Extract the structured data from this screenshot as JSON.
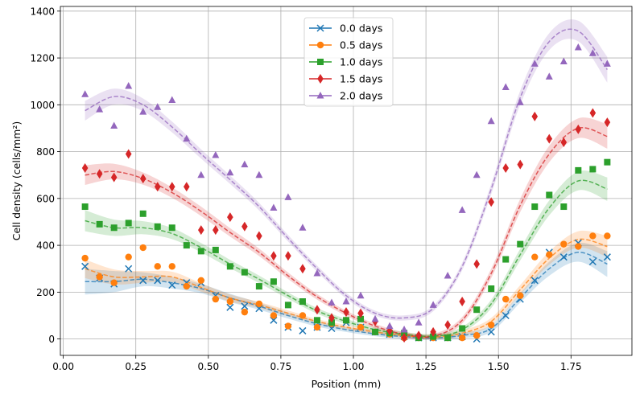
{
  "chart_data": {
    "type": "scatter",
    "title": "",
    "xlabel": "Position (mm)",
    "ylabel": "Cell density (cells/mm²)",
    "xlim": [
      -0.01,
      1.96
    ],
    "ylim": [
      -70,
      1420
    ],
    "xticks": [
      0.0,
      0.25,
      0.5,
      0.75,
      1.0,
      1.25,
      1.5,
      1.75
    ],
    "xtick_labels": [
      "0.00",
      "0.25",
      "0.50",
      "0.75",
      "1.00",
      "1.25",
      "1.50",
      "1.75"
    ],
    "yticks": [
      0,
      200,
      400,
      600,
      800,
      1000,
      1200,
      1400
    ],
    "ytick_labels": [
      "0",
      "200",
      "400",
      "600",
      "800",
      "1000",
      "1200",
      "1400"
    ],
    "grid": true,
    "legend_position": "upper-center",
    "x": [
      0.075,
      0.125,
      0.175,
      0.225,
      0.275,
      0.325,
      0.375,
      0.425,
      0.475,
      0.525,
      0.575,
      0.625,
      0.675,
      0.725,
      0.775,
      0.825,
      0.875,
      0.925,
      0.975,
      1.025,
      1.075,
      1.125,
      1.175,
      1.225,
      1.275,
      1.325,
      1.375,
      1.425,
      1.475,
      1.525,
      1.575,
      1.625,
      1.675,
      1.725,
      1.775,
      1.825,
      1.875
    ],
    "fit_x": [
      0.075,
      0.175,
      0.275,
      0.375,
      0.475,
      0.575,
      0.675,
      0.775,
      0.875,
      0.975,
      1.075,
      1.175,
      1.275,
      1.375,
      1.475,
      1.575,
      1.675,
      1.775,
      1.875
    ],
    "series": [
      {
        "name": "0.0 days",
        "color": "#1f77b4",
        "marker": "x",
        "values": [
          310,
          260,
          235,
          300,
          250,
          250,
          230,
          240,
          240,
          185,
          135,
          140,
          130,
          80,
          50,
          35,
          50,
          45,
          70,
          50,
          30,
          20,
          10,
          5,
          5,
          5,
          10,
          0,
          30,
          100,
          170,
          250,
          370,
          350,
          410,
          330,
          350
        ],
        "fit": [
          245,
          245,
          255,
          240,
          215,
          175,
          140,
          100,
          65,
          40,
          22,
          10,
          5,
          15,
          45,
          175,
          300,
          370,
          320
        ],
        "band": [
          55,
          45,
          30,
          25,
          20,
          18,
          15,
          13,
          12,
          10,
          10,
          10,
          10,
          12,
          15,
          20,
          30,
          40,
          55
        ]
      },
      {
        "name": "0.5 days",
        "color": "#ff7f0e",
        "marker": "circle",
        "values": [
          345,
          265,
          240,
          350,
          390,
          310,
          310,
          225,
          250,
          170,
          160,
          115,
          150,
          100,
          55,
          100,
          50,
          65,
          80,
          50,
          30,
          20,
          5,
          5,
          5,
          5,
          5,
          15,
          60,
          170,
          185,
          350,
          360,
          405,
          395,
          440,
          440
        ],
        "fit": [
          300,
          265,
          265,
          265,
          220,
          175,
          145,
          110,
          75,
          50,
          30,
          15,
          8,
          25,
          75,
          210,
          345,
          425,
          395
        ],
        "band": [
          40,
          32,
          25,
          22,
          18,
          15,
          13,
          12,
          10,
          10,
          10,
          10,
          10,
          12,
          15,
          20,
          28,
          35,
          45
        ]
      },
      {
        "name": "1.0 days",
        "color": "#2ca02c",
        "marker": "square",
        "values": [
          565,
          490,
          475,
          495,
          535,
          480,
          475,
          400,
          375,
          380,
          310,
          285,
          225,
          245,
          145,
          160,
          80,
          70,
          80,
          85,
          30,
          25,
          25,
          5,
          10,
          5,
          45,
          125,
          215,
          340,
          405,
          565,
          615,
          565,
          720,
          725,
          755
        ],
        "fit": [
          505,
          475,
          475,
          450,
          390,
          320,
          255,
          185,
          120,
          75,
          40,
          20,
          12,
          40,
          150,
          360,
          560,
          675,
          640
        ],
        "band": [
          45,
          35,
          28,
          24,
          20,
          18,
          16,
          14,
          12,
          11,
          10,
          10,
          10,
          12,
          18,
          25,
          32,
          40,
          50
        ]
      },
      {
        "name": "1.5 days",
        "color": "#d62728",
        "marker": "diamond",
        "values": [
          730,
          705,
          690,
          790,
          685,
          650,
          650,
          650,
          465,
          465,
          520,
          480,
          440,
          355,
          355,
          300,
          125,
          90,
          115,
          110,
          75,
          35,
          5,
          15,
          30,
          60,
          160,
          320,
          585,
          730,
          745,
          950,
          855,
          840,
          895,
          965,
          925
        ],
        "fit": [
          700,
          715,
          685,
          625,
          545,
          455,
          370,
          270,
          180,
          110,
          55,
          20,
          12,
          80,
          280,
          570,
          790,
          900,
          865
        ],
        "band": [
          42,
          33,
          26,
          22,
          20,
          18,
          16,
          14,
          12,
          11,
          10,
          10,
          10,
          14,
          20,
          28,
          35,
          42,
          52
        ]
      },
      {
        "name": "2.0 days",
        "color": "#9467bd",
        "marker": "triangle",
        "values": [
          1045,
          980,
          910,
          1080,
          970,
          990,
          1020,
          855,
          700,
          785,
          710,
          745,
          700,
          560,
          605,
          475,
          280,
          155,
          160,
          185,
          85,
          55,
          40,
          70,
          145,
          270,
          550,
          700,
          930,
          1075,
          1010,
          1175,
          1120,
          1185,
          1245,
          1220,
          1175
        ],
        "fit": [
          975,
          1035,
          1000,
          905,
          790,
          680,
          565,
          430,
          300,
          185,
          110,
          90,
          130,
          310,
          640,
          1030,
          1270,
          1315,
          1150
        ],
        "band": [
          42,
          34,
          27,
          23,
          20,
          18,
          16,
          14,
          13,
          12,
          11,
          11,
          12,
          16,
          22,
          30,
          36,
          44,
          55
        ]
      }
    ]
  }
}
